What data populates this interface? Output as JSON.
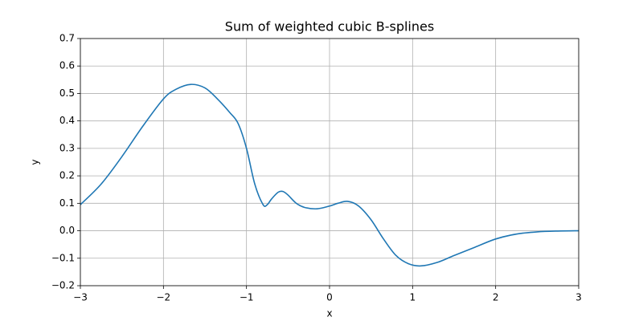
{
  "chart_data": {
    "type": "line",
    "title": "Sum of weighted cubic B-splines",
    "xlabel": "x",
    "ylabel": "y",
    "x": [
      -3,
      -2.75,
      -2.5,
      -2.25,
      -2,
      -1.85,
      -1.67,
      -1.5,
      -1.35,
      -1.2,
      -1.1,
      -1,
      -0.9,
      -0.8,
      -0.75,
      -0.7,
      -0.62,
      -0.56,
      -0.5,
      -0.4,
      -0.3,
      -0.15,
      0,
      0.1,
      0.22,
      0.35,
      0.5,
      0.65,
      0.8,
      0.95,
      1.1,
      1.3,
      1.5,
      1.75,
      2,
      2.25,
      2.5,
      2.75,
      3
    ],
    "series": [
      {
        "color": "#1f77b4",
        "values": [
          0.095,
          0.17,
          0.27,
          0.38,
          0.48,
          0.515,
          0.533,
          0.52,
          0.48,
          0.43,
          0.39,
          0.3,
          0.17,
          0.095,
          0.095,
          0.115,
          0.14,
          0.143,
          0.13,
          0.1,
          0.085,
          0.08,
          0.09,
          0.1,
          0.107,
          0.09,
          0.04,
          -0.03,
          -0.09,
          -0.12,
          -0.128,
          -0.115,
          -0.09,
          -0.06,
          -0.03,
          -0.012,
          -0.004,
          -0.001,
          0
        ]
      }
    ],
    "xlim": [
      -3,
      3
    ],
    "xticks": [
      {
        "value": -3,
        "label": "−3"
      },
      {
        "value": -2,
        "label": "−2"
      },
      {
        "value": -1,
        "label": "−1"
      },
      0,
      1,
      2,
      3
    ],
    "ylim": [
      -0.2,
      0.7
    ],
    "yticks": [
      {
        "value": -0.2,
        "label": "−0.2"
      },
      {
        "value": -0.1,
        "label": "−0.1"
      },
      {
        "value": 0,
        "label": "0.0"
      },
      0.1,
      0.2,
      0.3,
      0.4,
      0.5,
      0.6,
      0.7
    ],
    "grid": true
  }
}
